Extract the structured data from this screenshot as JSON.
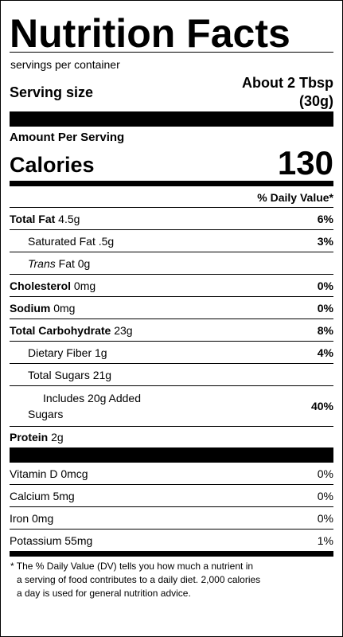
{
  "title": "Nutrition Facts",
  "servings_per_container": "servings per container",
  "serving_size": {
    "label": "Serving size",
    "value_line1": "About 2 Tbsp",
    "value_line2": "(30g)"
  },
  "amount_per_serving": "Amount Per Serving",
  "calories": {
    "label": "Calories",
    "value": "130"
  },
  "daily_value_header": "% Daily Value*",
  "nutrients": {
    "total_fat": {
      "name": "Total Fat",
      "amount": " 4.5g",
      "dv": "6%"
    },
    "saturated_fat": {
      "name": "Saturated Fat .5g",
      "dv": "3%"
    },
    "trans_fat": {
      "name_italic": "Trans",
      "name_rest": " Fat 0g"
    },
    "cholesterol": {
      "name": "Cholesterol",
      "amount": " 0mg",
      "dv": "0%"
    },
    "sodium": {
      "name": "Sodium",
      "amount": " 0mg",
      "dv": "0%"
    },
    "total_carbohydrate": {
      "name": "Total Carbohydrate",
      "amount": " 23g",
      "dv": "8%"
    },
    "dietary_fiber": {
      "name": "Dietary Fiber 1g",
      "dv": "4%"
    },
    "total_sugars": {
      "name": "Total Sugars 21g"
    },
    "added_sugars": {
      "line1": "Includes 20g Added",
      "line2": "Sugars",
      "dv": "40%"
    },
    "protein": {
      "name": "Protein",
      "amount": " 2g"
    }
  },
  "vitamins": [
    {
      "name": "Vitamin D 0mcg",
      "dv": "0%"
    },
    {
      "name": "Calcium 5mg",
      "dv": "0%"
    },
    {
      "name": "Iron 0mg",
      "dv": "0%"
    },
    {
      "name": "Potassium 55mg",
      "dv": "1%"
    }
  ],
  "footnote": {
    "line1": "* The % Daily Value (DV) tells you how much a nutrient in",
    "line2": "a serving of food contributes to a daily diet. 2,000 calories",
    "line3": "a day is used for general nutrition advice."
  }
}
